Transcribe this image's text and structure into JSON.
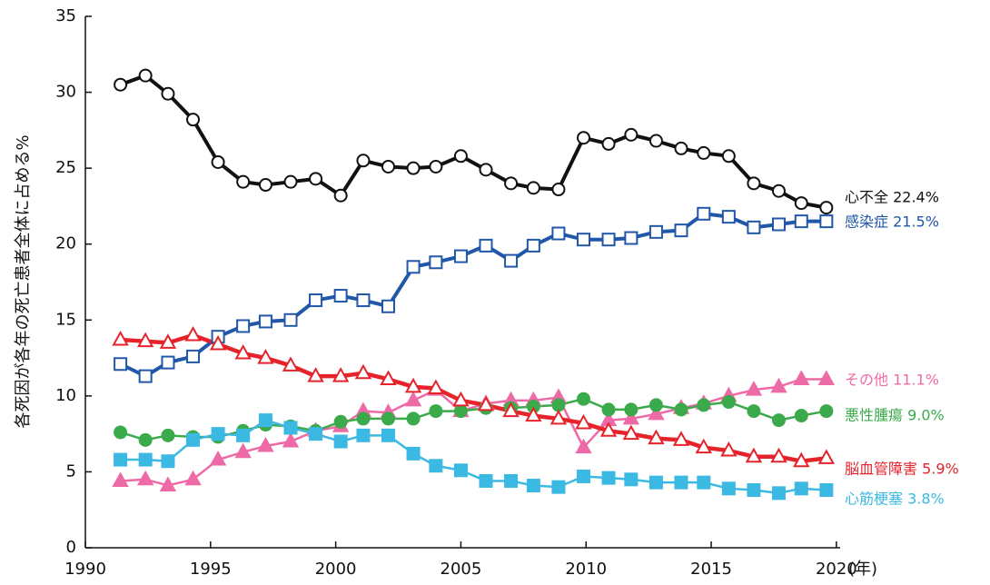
{
  "chart_data": {
    "type": "line",
    "ylabel": "各死因が各年の死亡患者全体に占める%",
    "x_unit": "(年)",
    "x": [
      1991.4,
      1992.4,
      1993.3,
      1994.3,
      1995.3,
      1996.3,
      1997.2,
      1998.2,
      1999.2,
      2000.2,
      2001.1,
      2002.1,
      2003.1,
      2004.0,
      2005.0,
      2006.0,
      2007.0,
      2007.9,
      2008.9,
      2009.9,
      2010.9,
      2011.8,
      2012.8,
      2013.8,
      2014.7,
      2015.7,
      2016.7,
      2017.7,
      2018.6,
      2019.6
    ],
    "xlim": [
      1990,
      2020.15
    ],
    "xticks": [
      1990,
      1995,
      2000,
      2005,
      2010,
      2015,
      2020
    ],
    "ylim": [
      0,
      35
    ],
    "yticks": [
      0,
      5,
      10,
      15,
      20,
      25,
      30,
      35
    ],
    "series": [
      {
        "name": "心不全",
        "end_label": "22.4%",
        "color": "#111111",
        "marker": "circle",
        "filled": false,
        "values": [
          30.5,
          31.1,
          29.9,
          28.2,
          25.4,
          24.1,
          23.9,
          24.1,
          24.3,
          23.2,
          25.5,
          25.1,
          25.0,
          25.1,
          25.8,
          24.9,
          24.0,
          23.7,
          23.6,
          27.0,
          26.6,
          27.2,
          26.8,
          26.3,
          26.0,
          25.8,
          24.0,
          23.5,
          22.7,
          22.4
        ]
      },
      {
        "name": "感染症",
        "end_label": "21.5%",
        "color": "#2157a8",
        "marker": "square",
        "filled": false,
        "values": [
          12.1,
          11.3,
          12.2,
          12.6,
          13.9,
          14.6,
          14.9,
          15.0,
          16.3,
          16.6,
          16.3,
          15.9,
          18.5,
          18.8,
          19.2,
          19.9,
          18.9,
          19.9,
          20.7,
          20.3,
          20.3,
          20.4,
          20.8,
          20.9,
          22.0,
          21.8,
          21.1,
          21.3,
          21.5,
          21.5
        ]
      },
      {
        "name": "その他",
        "end_label": "11.1%",
        "color": "#ee6aa7",
        "marker": "triangle",
        "filled": true,
        "values": [
          4.4,
          4.5,
          4.1,
          4.5,
          5.8,
          6.3,
          6.7,
          7.0,
          7.7,
          8.0,
          9.0,
          8.9,
          9.7,
          10.4,
          9.0,
          9.5,
          9.7,
          9.7,
          9.9,
          6.6,
          8.4,
          8.5,
          8.8,
          9.2,
          9.5,
          10.0,
          10.4,
          10.6,
          11.1,
          11.1
        ]
      },
      {
        "name": "悪性腫瘍",
        "end_label": "9.0%",
        "color": "#3aaa4a",
        "marker": "circle",
        "filled": true,
        "values": [
          7.6,
          7.1,
          7.4,
          7.3,
          7.3,
          7.7,
          8.1,
          8.0,
          7.7,
          8.3,
          8.5,
          8.5,
          8.5,
          9.0,
          9.0,
          9.2,
          9.2,
          9.3,
          9.4,
          9.8,
          9.1,
          9.1,
          9.4,
          9.1,
          9.4,
          9.6,
          9.0,
          8.4,
          8.7,
          9.0
        ]
      },
      {
        "name": "脳血管障害",
        "end_label": "5.9%",
        "color": "#e6232b",
        "marker": "triangle",
        "filled": false,
        "values": [
          13.7,
          13.6,
          13.5,
          14.0,
          13.4,
          12.8,
          12.5,
          12.0,
          11.3,
          11.3,
          11.5,
          11.1,
          10.6,
          10.5,
          9.7,
          9.4,
          9.0,
          8.7,
          8.5,
          8.2,
          7.7,
          7.5,
          7.2,
          7.1,
          6.6,
          6.4,
          6.0,
          6.0,
          5.7,
          5.9
        ]
      },
      {
        "name": "心筋梗塞",
        "end_label": "3.8%",
        "color": "#3bb9e2",
        "marker": "square",
        "filled": true,
        "values": [
          5.8,
          5.8,
          5.7,
          7.1,
          7.5,
          7.4,
          8.4,
          7.9,
          7.5,
          7.0,
          7.4,
          7.4,
          6.2,
          5.4,
          5.1,
          4.4,
          4.4,
          4.1,
          4.0,
          4.7,
          4.6,
          4.5,
          4.3,
          4.3,
          4.3,
          3.9,
          3.8,
          3.6,
          3.9,
          3.8
        ]
      }
    ]
  }
}
